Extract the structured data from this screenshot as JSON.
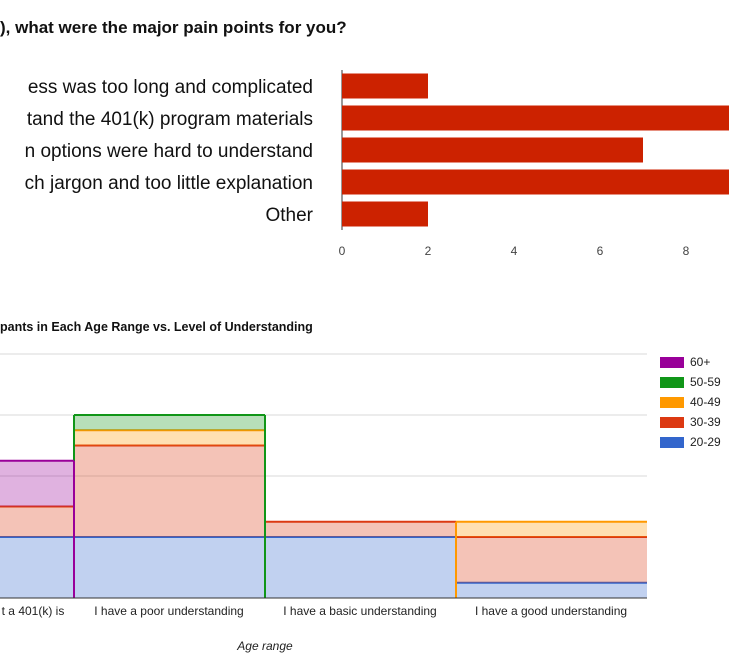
{
  "chart_data": [
    {
      "type": "bar",
      "orientation": "horizontal",
      "title": "), what were the major pain points for you?",
      "categories": [
        "ess was too long and complicated",
        "tand the 401(k) program materials",
        "n options were hard to understand",
        "ch jargon and too little explanation",
        "Other"
      ],
      "values": [
        2,
        9,
        7,
        9,
        2
      ],
      "xlim": [
        0,
        9
      ],
      "xticks": [
        0,
        2,
        4,
        6,
        8
      ],
      "color": "#cc2200",
      "grid": false
    },
    {
      "type": "area",
      "stacked": true,
      "step": true,
      "title": "pants in Each Age Range vs. Level of Understanding",
      "xlabel": "Age range",
      "categories": [
        "t a 401(k) is",
        "I have a poor understanding",
        "I have a basic understanding",
        "I have a good understanding"
      ],
      "ylim": [
        0,
        16
      ],
      "series": [
        {
          "name": "20-29",
          "color": "#3366cc",
          "values": [
            4,
            4,
            4,
            1
          ]
        },
        {
          "name": "30-39",
          "color": "#dc3912",
          "values": [
            2,
            6,
            1,
            3
          ]
        },
        {
          "name": "40-49",
          "color": "#ff9900",
          "values": [
            0,
            1,
            0,
            1
          ]
        },
        {
          "name": "50-59",
          "color": "#109618",
          "values": [
            0,
            1,
            0,
            0
          ]
        },
        {
          "name": "60+",
          "color": "#990099",
          "values": [
            3,
            0,
            0,
            0
          ]
        }
      ],
      "legend": {
        "position": "right",
        "order": [
          "60+",
          "50-59",
          "40-49",
          "30-39",
          "20-29"
        ]
      },
      "grid": true
    }
  ]
}
